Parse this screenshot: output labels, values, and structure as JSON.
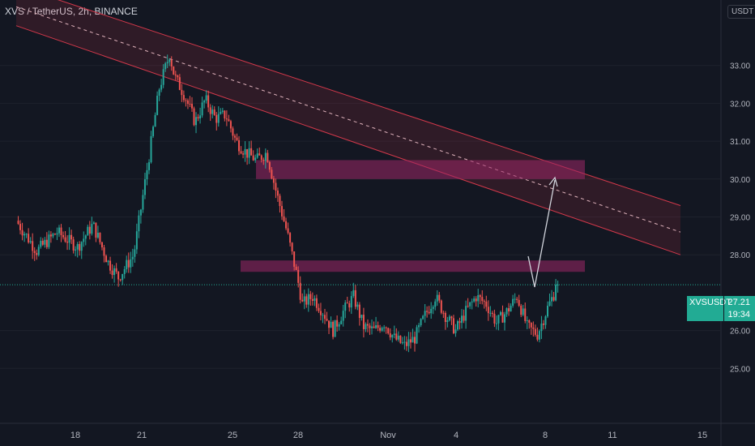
{
  "header": {
    "title": "XVS / TetherUS, 2h, BINANCE",
    "currency": "USDT"
  },
  "last_price": {
    "symbol": "XVSUSDT",
    "price": "27.21",
    "countdown": "19:34"
  },
  "colors": {
    "background": "#131722",
    "up": "#26a69a",
    "down": "#ef5350",
    "zone": "#9c2766",
    "channel": "#d2384a",
    "label": "#22ab94",
    "arrow": "#d1d4dc"
  },
  "chart_data": {
    "type": "candlestick",
    "x_tick_labels": [
      "18",
      "21",
      "25",
      "28",
      "Nov",
      "4",
      "8",
      "11",
      "15"
    ],
    "y_tick_labels": [
      "33.00",
      "32.00",
      "31.00",
      "30.00",
      "29.00",
      "28.00",
      "26.00",
      "25.00"
    ],
    "y_ticks": [
      33,
      32,
      31,
      30,
      29,
      28,
      26,
      25
    ],
    "ylim": [
      24.3,
      34.3
    ],
    "series": [
      {
        "points": [
          [
            0,
            28.9
          ],
          [
            4,
            28.1
          ],
          [
            8,
            28.6
          ],
          [
            12,
            28.2
          ],
          [
            15,
            28.8
          ],
          [
            18,
            27.8
          ],
          [
            20,
            27.4
          ],
          [
            23,
            28.0
          ],
          [
            26,
            30.6
          ],
          [
            28,
            32.4
          ],
          [
            30,
            33.3
          ],
          [
            31,
            32.7
          ],
          [
            33,
            32.2
          ],
          [
            35,
            31.5
          ],
          [
            37,
            32.1
          ],
          [
            39,
            31.6
          ],
          [
            41,
            31.7
          ],
          [
            43,
            31.0
          ],
          [
            45,
            30.7
          ],
          [
            47,
            30.5
          ],
          [
            49,
            30.7
          ],
          [
            51,
            29.6
          ],
          [
            53,
            28.6
          ],
          [
            55,
            27.4
          ],
          [
            56,
            26.7
          ],
          [
            58,
            26.9
          ],
          [
            60,
            26.5
          ],
          [
            62,
            26.0
          ],
          [
            64,
            26.5
          ],
          [
            66,
            26.9
          ],
          [
            68,
            26.1
          ],
          [
            70,
            26.0
          ],
          [
            72,
            26.2
          ],
          [
            74,
            25.8
          ],
          [
            76,
            25.6
          ],
          [
            78,
            25.8
          ],
          [
            80,
            26.4
          ],
          [
            82,
            26.9
          ],
          [
            84,
            26.4
          ],
          [
            86,
            26.0
          ],
          [
            88,
            26.5
          ],
          [
            90,
            26.9
          ],
          [
            92,
            26.7
          ],
          [
            94,
            26.2
          ],
          [
            96,
            26.5
          ],
          [
            98,
            26.9
          ],
          [
            100,
            26.1
          ],
          [
            102,
            25.9
          ],
          [
            104,
            26.6
          ],
          [
            106,
            27.2
          ]
        ]
      }
    ],
    "resistance_zones": [
      [
        27.55,
        27.85
      ],
      [
        30.0,
        30.5
      ]
    ],
    "channel_lines": [
      {
        "start": [
          0,
          35.1
        ],
        "end": [
          130,
          29.3
        ]
      },
      {
        "start": [
          0,
          34.05
        ],
        "end": [
          130,
          28.0
        ]
      }
    ],
    "channel_midline": {
      "start": [
        0,
        34.55
      ],
      "end": [
        130,
        28.6
      ]
    },
    "last_price_value": 27.21
  }
}
